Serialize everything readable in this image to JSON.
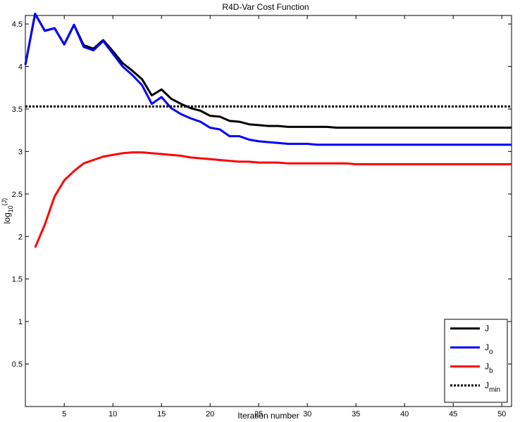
{
  "chart_data": {
    "type": "line",
    "title": "R4D-Var Cost Function",
    "xlabel": "Iteration number",
    "ylabel": {
      "base": "log",
      "sub": "10",
      "rest": "(J)"
    },
    "xlim": [
      1,
      51
    ],
    "ylim": [
      0,
      4.6
    ],
    "xticks": [
      5,
      10,
      15,
      20,
      25,
      30,
      35,
      40,
      45,
      50
    ],
    "yticks": [
      0.5,
      1,
      1.5,
      2,
      2.5,
      3,
      3.5,
      4,
      4.5
    ],
    "grid": false,
    "legend_position": "bottom-right",
    "series": [
      {
        "name": "J",
        "name_sub": "",
        "color": "#000000",
        "style": "solid",
        "x": [
          1,
          2,
          3,
          4,
          5,
          6,
          7,
          8,
          9,
          10,
          11,
          12,
          13,
          14,
          15,
          16,
          17,
          18,
          19,
          20,
          21,
          22,
          23,
          24,
          25,
          26,
          27,
          28,
          29,
          30,
          31,
          32,
          33,
          34,
          35,
          36,
          37,
          38,
          39,
          40,
          41,
          42,
          43,
          44,
          45,
          46,
          47,
          48,
          49,
          50,
          51
        ],
        "y": [
          4.02,
          4.62,
          4.42,
          4.45,
          4.26,
          4.49,
          4.25,
          4.21,
          4.31,
          4.18,
          4.04,
          3.95,
          3.85,
          3.66,
          3.73,
          3.62,
          3.56,
          3.51,
          3.48,
          3.42,
          3.41,
          3.36,
          3.35,
          3.32,
          3.31,
          3.3,
          3.3,
          3.29,
          3.29,
          3.29,
          3.29,
          3.29,
          3.28,
          3.28,
          3.28,
          3.28,
          3.28,
          3.28,
          3.28,
          3.28,
          3.28,
          3.28,
          3.28,
          3.28,
          3.28,
          3.28,
          3.28,
          3.28,
          3.28,
          3.28,
          3.28
        ]
      },
      {
        "name": "J",
        "name_sub": "o",
        "color": "#0000ff",
        "style": "solid",
        "x": [
          1,
          2,
          3,
          4,
          5,
          6,
          7,
          8,
          9,
          10,
          11,
          12,
          13,
          14,
          15,
          16,
          17,
          18,
          19,
          20,
          21,
          22,
          23,
          24,
          25,
          26,
          27,
          28,
          29,
          30,
          31,
          32,
          33,
          34,
          35,
          36,
          37,
          38,
          39,
          40,
          41,
          42,
          43,
          44,
          45,
          46,
          47,
          48,
          49,
          50,
          51
        ],
        "y": [
          4.02,
          4.62,
          4.42,
          4.45,
          4.26,
          4.49,
          4.23,
          4.19,
          4.3,
          4.15,
          4.0,
          3.9,
          3.78,
          3.56,
          3.64,
          3.51,
          3.44,
          3.39,
          3.35,
          3.28,
          3.26,
          3.18,
          3.18,
          3.14,
          3.12,
          3.11,
          3.1,
          3.09,
          3.09,
          3.09,
          3.08,
          3.08,
          3.08,
          3.08,
          3.08,
          3.08,
          3.08,
          3.08,
          3.08,
          3.08,
          3.08,
          3.08,
          3.08,
          3.08,
          3.08,
          3.08,
          3.08,
          3.08,
          3.08,
          3.08,
          3.08
        ]
      },
      {
        "name": "J",
        "name_sub": "b",
        "color": "#ff0000",
        "style": "solid",
        "x": [
          2,
          3,
          4,
          5,
          6,
          7,
          8,
          9,
          10,
          11,
          12,
          13,
          14,
          15,
          16,
          17,
          18,
          19,
          20,
          21,
          22,
          23,
          24,
          25,
          26,
          27,
          28,
          29,
          30,
          31,
          32,
          33,
          34,
          35,
          36,
          37,
          38,
          39,
          40,
          41,
          42,
          43,
          44,
          45,
          46,
          47,
          48,
          49,
          50,
          51
        ],
        "y": [
          1.87,
          2.14,
          2.47,
          2.66,
          2.77,
          2.86,
          2.9,
          2.94,
          2.96,
          2.98,
          2.99,
          2.99,
          2.98,
          2.97,
          2.96,
          2.95,
          2.93,
          2.92,
          2.91,
          2.9,
          2.89,
          2.88,
          2.88,
          2.87,
          2.87,
          2.87,
          2.86,
          2.86,
          2.86,
          2.86,
          2.86,
          2.86,
          2.86,
          2.85,
          2.85,
          2.85,
          2.85,
          2.85,
          2.85,
          2.85,
          2.85,
          2.85,
          2.85,
          2.85,
          2.85,
          2.85,
          2.85,
          2.85,
          2.85,
          2.85
        ]
      },
      {
        "name": "J",
        "name_sub": "min",
        "color": "#000000",
        "style": "dotted",
        "x": [
          1,
          51
        ],
        "y": [
          3.53,
          3.53
        ]
      }
    ]
  }
}
